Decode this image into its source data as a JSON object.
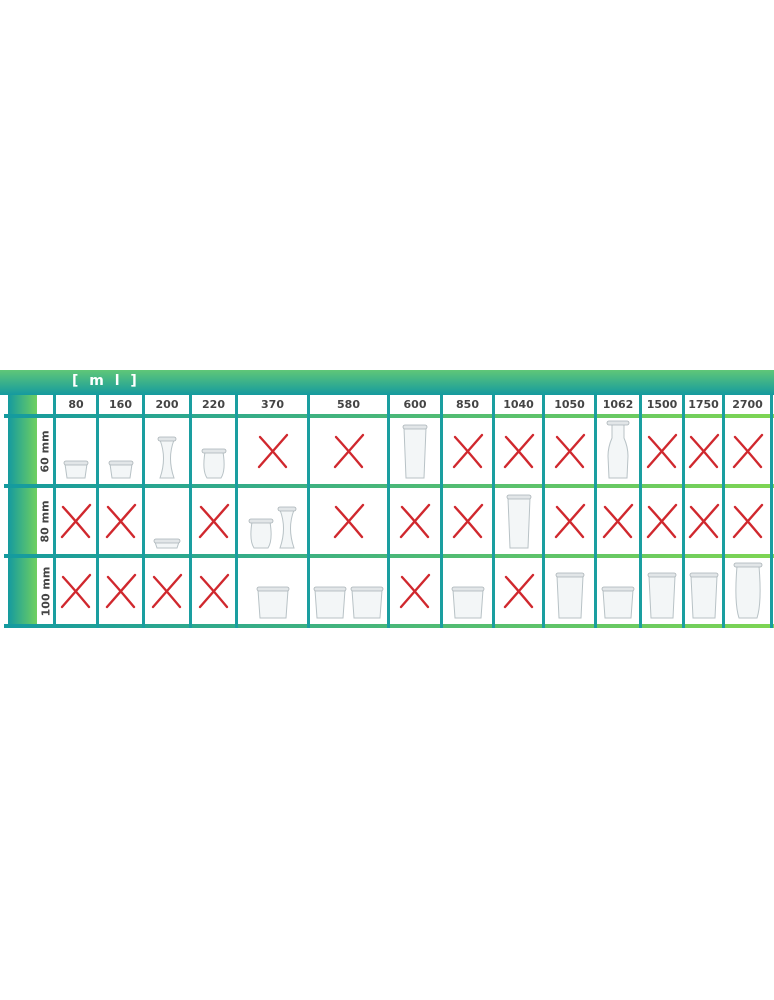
{
  "unit_label": "[ m l ]",
  "columns": [
    "80",
    "160",
    "200",
    "220",
    "370",
    "580",
    "600",
    "850",
    "1040",
    "1050",
    "1062",
    "1500",
    "1750",
    "2700"
  ],
  "rows": [
    {
      "label": "60 mm",
      "cells": [
        "mold",
        "mold",
        "deco",
        "tulip",
        "x",
        "x",
        "cylinder",
        "x",
        "x",
        "x",
        "juice",
        "x",
        "x",
        "x"
      ]
    },
    {
      "label": "80 mm",
      "cells": [
        "x",
        "x",
        "flat",
        "x",
        "tulip+deco",
        "x",
        "x",
        "x",
        "cylinder",
        "x",
        "x",
        "x",
        "x",
        "x"
      ]
    },
    {
      "label": "100 mm",
      "cells": [
        "x",
        "x",
        "x",
        "x",
        "mold",
        "mold+mold",
        "x",
        "mold",
        "x",
        "cylinder",
        "mold",
        "cylinder",
        "cylinder",
        "tulip"
      ]
    }
  ],
  "colors": {
    "teal": "#149a9f",
    "green": "#6fd060",
    "cross": "#d0282e"
  }
}
